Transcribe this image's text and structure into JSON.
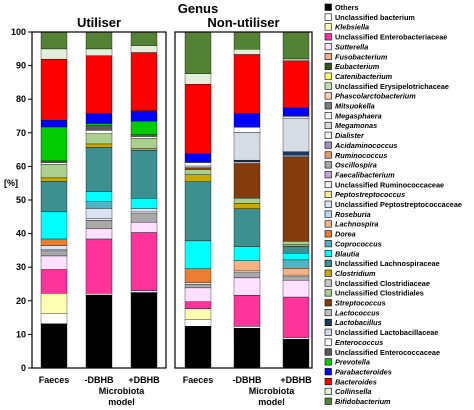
{
  "chart_data": {
    "type": "bar",
    "stacked": true,
    "title": "Genus",
    "ylabel": "[%]",
    "ylim": [
      0,
      100
    ],
    "yticks": [
      0,
      10,
      20,
      30,
      40,
      50,
      60,
      70,
      80,
      90,
      100
    ],
    "groups": [
      {
        "title": "Utiliser",
        "categories": [
          "Faeces",
          "-DBHB",
          "+DBHB"
        ],
        "subtitle": "Microbiota model"
      },
      {
        "title": "Non-utiliser",
        "categories": [
          "Faeces",
          "-DBHB",
          "+DBHB"
        ],
        "subtitle": "Microbiota model"
      }
    ],
    "series": [
      {
        "name": "Bifidobacterium",
        "italic": true,
        "color": "#548235",
        "values": [
          [
            5,
            5,
            4
          ],
          [
            12,
            5,
            8
          ]
        ]
      },
      {
        "name": "Collinsella",
        "italic": true,
        "color": "#e2efda",
        "values": [
          [
            3,
            2,
            2
          ],
          [
            3,
            1.5,
            0.5
          ]
        ]
      },
      {
        "name": "Bacteroides",
        "italic": true,
        "color": "#ff0000",
        "values": [
          [
            18,
            17,
            17
          ],
          [
            20,
            17,
            14
          ]
        ]
      },
      {
        "name": "Parabacteroides",
        "italic": true,
        "color": "#0000ff",
        "values": [
          [
            2,
            3,
            3
          ],
          [
            2.5,
            4,
            2.5
          ]
        ]
      },
      {
        "name": "Prevotella",
        "italic": true,
        "color": "#00cc00",
        "values": [
          [
            10,
            0.5,
            4
          ],
          [
            0,
            0,
            0
          ]
        ]
      },
      {
        "name": "Unclassified Enterococcaceae",
        "italic": false,
        "color": "#595959",
        "values": [
          [
            0.5,
            1.5,
            0.5
          ],
          [
            0,
            0,
            0
          ]
        ]
      },
      {
        "name": "Enterococcus",
        "italic": true,
        "color": "#ffffff",
        "values": [
          [
            0.5,
            1,
            0.5
          ],
          [
            1,
            1.5,
            0.5
          ]
        ]
      },
      {
        "name": "Unclassified Lactobacillaceae",
        "italic": false,
        "color": "#d6dce4",
        "values": [
          [
            0,
            0,
            0
          ],
          [
            0.5,
            8,
            10
          ]
        ]
      },
      {
        "name": "Lactobacillus",
        "italic": true,
        "color": "#203864",
        "values": [
          [
            0,
            0,
            0
          ],
          [
            0,
            0.5,
            1
          ]
        ]
      },
      {
        "name": "Lactococcus",
        "italic": true,
        "color": "#bfbfbf",
        "values": [
          [
            0,
            0,
            0
          ],
          [
            0,
            0.5,
            0.5
          ]
        ]
      },
      {
        "name": "Streptococcus",
        "italic": true,
        "color": "#843c0c",
        "values": [
          [
            0,
            0,
            0
          ],
          [
            0.5,
            10,
            25
          ]
        ]
      },
      {
        "name": "Unclassified Clostridiales",
        "italic": false,
        "color": "#a9d08e",
        "values": [
          [
            4,
            3,
            3
          ],
          [
            1.5,
            1.5,
            1
          ]
        ]
      },
      {
        "name": "Unclassified Clostridiaceae",
        "italic": false,
        "color": "#c9c9c9",
        "values": [
          [
            0,
            0,
            0
          ],
          [
            0,
            0,
            0
          ]
        ]
      },
      {
        "name": "Clostridium",
        "italic": true,
        "color": "#c9a800",
        "values": [
          [
            1,
            1,
            0.5
          ],
          [
            2,
            1.5,
            0.5
          ]
        ]
      },
      {
        "name": "Unclassified Lachnospiraceae",
        "italic": false,
        "color": "#3c9090",
        "values": [
          [
            9,
            13,
            14
          ],
          [
            17,
            11,
            2
          ]
        ]
      },
      {
        "name": "Blautia",
        "italic": true,
        "color": "#00ffff",
        "values": [
          [
            8,
            3,
            3
          ],
          [
            8,
            4,
            2
          ]
        ]
      },
      {
        "name": "Coprococcus",
        "italic": true,
        "color": "#4fb5c5",
        "values": [
          [
            0,
            2,
            0
          ],
          [
            0,
            0,
            2.5
          ]
        ]
      },
      {
        "name": "Dorea",
        "italic": true,
        "color": "#ed7d31",
        "values": [
          [
            2,
            0,
            0
          ],
          [
            4,
            0,
            0
          ]
        ]
      },
      {
        "name": "Lachnospira",
        "italic": true,
        "color": "#f4b183",
        "values": [
          [
            0,
            0,
            0
          ],
          [
            0,
            3,
            2
          ]
        ]
      },
      {
        "name": "Roseburia",
        "italic": true,
        "color": "#bdd7ee",
        "values": [
          [
            0,
            0,
            0
          ],
          [
            0,
            0,
            0
          ]
        ]
      },
      {
        "name": "Unclassified Peptostreptococcaceae",
        "italic": false,
        "color": "#dae3f3",
        "values": [
          [
            1,
            3,
            1
          ],
          [
            0,
            0,
            0
          ]
        ]
      },
      {
        "name": "Peptostreptococcus",
        "italic": true,
        "color": "#ffe699",
        "values": [
          [
            0,
            0,
            0
          ],
          [
            0,
            0,
            0
          ]
        ]
      },
      {
        "name": "Unclassified Ruminococcaceae",
        "italic": false,
        "color": "#ededed",
        "values": [
          [
            0.5,
            0.5,
            0.5
          ],
          [
            0.5,
            0.5,
            0.5
          ]
        ]
      },
      {
        "name": "Faecalibacterium",
        "italic": true,
        "color": "#c5a5d8",
        "values": [
          [
            0,
            0,
            0
          ],
          [
            0,
            0,
            0
          ]
        ]
      },
      {
        "name": "Oscillospira",
        "italic": true,
        "color": "#a9a9a9",
        "values": [
          [
            1.5,
            2.5,
            2.5
          ],
          [
            1,
            1.5,
            1
          ]
        ]
      },
      {
        "name": "Ruminococcus",
        "italic": true,
        "color": "#e29a6a",
        "values": [
          [
            0,
            0,
            0
          ],
          [
            0,
            0,
            0
          ]
        ]
      },
      {
        "name": "Acidaminococcus",
        "italic": true,
        "color": "#9e8fc7",
        "values": [
          [
            0,
            0,
            0
          ],
          [
            0,
            0,
            0
          ]
        ]
      },
      {
        "name": "Dialister",
        "italic": true,
        "color": "#f2f2f2",
        "values": [
          [
            0,
            0,
            0
          ],
          [
            0,
            0,
            0
          ]
        ]
      },
      {
        "name": "Megamonas",
        "italic": true,
        "color": "#d9d9d9",
        "values": [
          [
            0,
            0,
            0
          ],
          [
            0,
            0,
            0
          ]
        ]
      },
      {
        "name": "Megasphaera",
        "italic": true,
        "color": "#ffffff",
        "values": [
          [
            0,
            0,
            0
          ],
          [
            0,
            0,
            0
          ]
        ]
      },
      {
        "name": "Mitsuokella",
        "italic": true,
        "color": "#7f7f7f",
        "values": [
          [
            0,
            0,
            0
          ],
          [
            0,
            0,
            0
          ]
        ]
      },
      {
        "name": "Phascolarctobacterium",
        "italic": true,
        "color": "#f8cbad",
        "values": [
          [
            0,
            0,
            0
          ],
          [
            0,
            0,
            0
          ]
        ]
      },
      {
        "name": "Unclassified Erysipelotrichaceae",
        "italic": false,
        "color": "#c6e0b4",
        "values": [
          [
            0,
            0,
            0
          ],
          [
            0,
            0,
            0
          ]
        ]
      },
      {
        "name": "Catenibacterium",
        "italic": true,
        "color": "#ffff66",
        "values": [
          [
            0,
            0,
            0
          ],
          [
            0,
            0,
            0
          ]
        ]
      },
      {
        "name": "Eubacterium",
        "italic": true,
        "color": "#375623",
        "values": [
          [
            0,
            0,
            0
          ],
          [
            0,
            0,
            0
          ]
        ]
      },
      {
        "name": "Fusobacterium",
        "italic": true,
        "color": "#f4b084",
        "values": [
          [
            0,
            0,
            0
          ],
          [
            0,
            0,
            0
          ]
        ]
      },
      {
        "name": "Sutterella",
        "italic": true,
        "color": "#ffe1ff",
        "values": [
          [
            4,
            3,
            3
          ],
          [
            4,
            5,
            5
          ]
        ]
      },
      {
        "name": "Unclassified Enterobacteriaceae",
        "italic": false,
        "color": "#ff3399",
        "values": [
          [
            7,
            16,
            17
          ],
          [
            2,
            9,
            12
          ]
        ]
      },
      {
        "name": "Klebsiella",
        "italic": true,
        "color": "#ffffb3",
        "values": [
          [
            6,
            0,
            0
          ],
          [
            3,
            0,
            0
          ]
        ]
      },
      {
        "name": "Unclassified bacterium",
        "italic": false,
        "color": "#ffffff",
        "values": [
          [
            3,
            0.5,
            0.5
          ],
          [
            2,
            0.5,
            0.5
          ]
        ]
      },
      {
        "name": "Others",
        "italic": false,
        "color": "#000000",
        "values": [
          [
            13,
            21.5,
            22
          ],
          [
            12,
            11.5,
            8.5
          ]
        ]
      }
    ]
  }
}
